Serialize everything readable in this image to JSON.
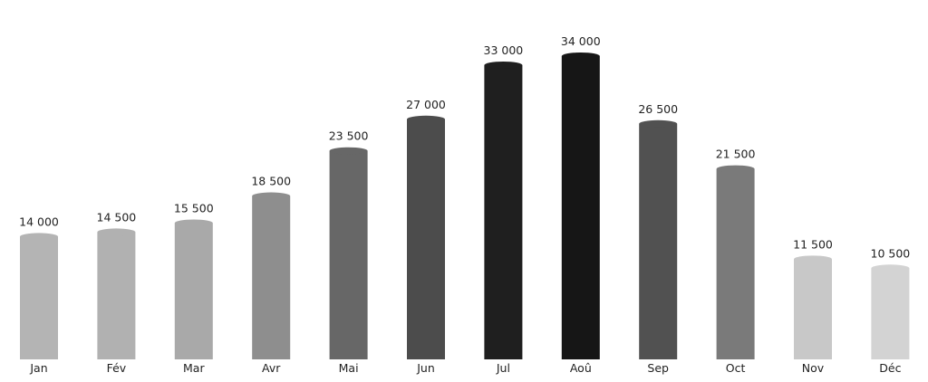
{
  "chart_data": {
    "type": "bar",
    "categories": [
      "Jan",
      "Fév",
      "Mar",
      "Avr",
      "Mai",
      "Jun",
      "Jul",
      "Aoû",
      "Sep",
      "Oct",
      "Nov",
      "Déc"
    ],
    "values": [
      14000,
      14500,
      15500,
      18500,
      23500,
      27000,
      33000,
      34000,
      26500,
      21500,
      11500,
      10500
    ],
    "value_labels": [
      "14 000",
      "14 500",
      "15 500",
      "18 500",
      "23 500",
      "27 000",
      "33 000",
      "34 000",
      "26 500",
      "21 500",
      "11 500",
      "10 500"
    ],
    "colors": [
      "#b4b4b4",
      "#b1b1b1",
      "#a9a9a9",
      "#8e8e8e",
      "#676767",
      "#4c4c4c",
      "#1f1f1f",
      "#161616",
      "#515151",
      "#7a7a7a",
      "#c8c8c8",
      "#d3d3d3"
    ],
    "ylim": [
      0,
      34000
    ],
    "grid": false,
    "legend": "none"
  }
}
